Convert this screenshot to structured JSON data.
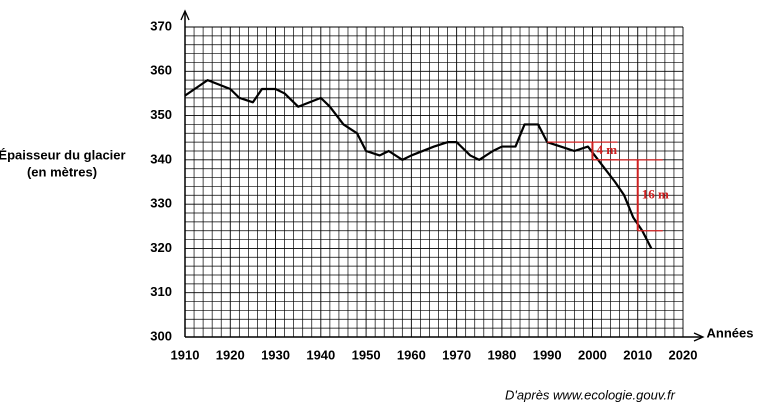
{
  "chart_data": {
    "type": "line",
    "y_label": [
      "Épaisseur du glacier",
      "(en mètres)"
    ],
    "x_label": "Années",
    "source": "D'après www.ecologie.gouv.fr",
    "color": "#000000",
    "grid": true,
    "x": [
      1910,
      1915,
      1920,
      1922,
      1925,
      1927,
      1930,
      1932,
      1935,
      1940,
      1942,
      1945,
      1948,
      1950,
      1953,
      1955,
      1958,
      1960,
      1965,
      1968,
      1970,
      1973,
      1975,
      1978,
      1980,
      1983,
      1985,
      1988,
      1990,
      1993,
      1996,
      1999,
      2002,
      2005,
      2007,
      2009,
      2011,
      2013
    ],
    "values": [
      354.5,
      358,
      356,
      354,
      353,
      356,
      356,
      355,
      352,
      354,
      352,
      348,
      346,
      342,
      341,
      342,
      340,
      341,
      343,
      344,
      344,
      341,
      340,
      342,
      343,
      343,
      348,
      348,
      344,
      343,
      342,
      343,
      339,
      335,
      332,
      327,
      324,
      320
    ],
    "xlim": [
      1910,
      2020
    ],
    "ylim": [
      300,
      370
    ],
    "xticks": [
      1910,
      1920,
      1930,
      1940,
      1950,
      1960,
      1970,
      1980,
      1990,
      2000,
      2010,
      2020
    ],
    "yticks": [
      300,
      310,
      320,
      330,
      340,
      350,
      360,
      370
    ],
    "annotations": [
      {
        "text": "4 m",
        "x": [
          1990,
          2000
        ],
        "y": [
          344,
          340
        ],
        "color": "#d02020"
      },
      {
        "text": "16 m",
        "x": [
          2000,
          2010
        ],
        "y": [
          340,
          324
        ],
        "color": "#d02020"
      }
    ]
  }
}
